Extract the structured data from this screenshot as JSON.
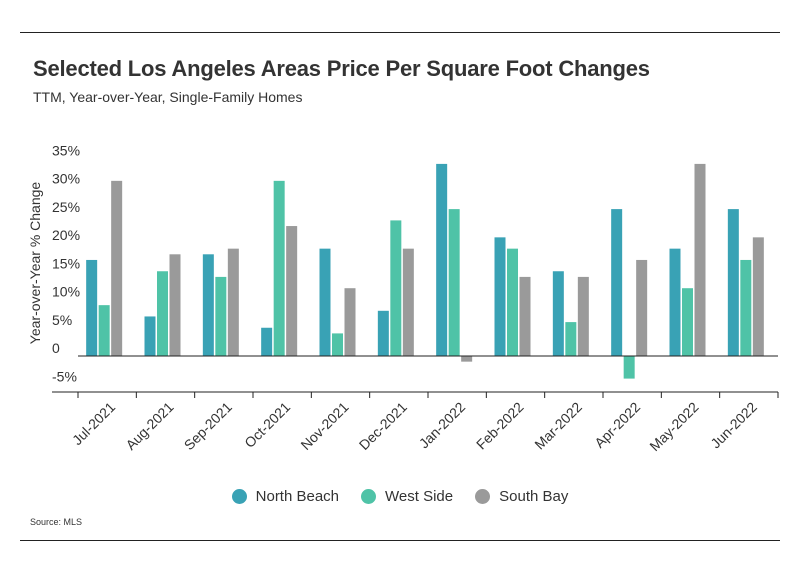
{
  "header": {
    "title": "Selected Los Angeles Areas Price Per Square Foot Changes",
    "subtitle": "TTM, Year-over-Year, Single-Family Homes"
  },
  "footer": {
    "source": "Source:  MLS"
  },
  "chart_data": {
    "type": "bar",
    "title": "Selected Los Angeles Areas Price Per Square Foot Changes",
    "subtitle": "TTM, Year-over-Year, Single-Family Homes",
    "xlabel": "",
    "ylabel": "Year-over-Year % Change",
    "ylim": [
      -5,
      35
    ],
    "yticks": [
      35,
      30,
      25,
      20,
      15,
      10,
      5,
      0,
      -5
    ],
    "ytick_labels": [
      "35%",
      "30%",
      "25%",
      "20%",
      "15%",
      "10%",
      "5%",
      "0",
      "-5%"
    ],
    "grid": false,
    "legend_position": "bottom",
    "categories": [
      "Jul-2021",
      "Aug-2021",
      "Sep-2021",
      "Oct-2021",
      "Nov-2021",
      "Dec-2021",
      "Jan-2022",
      "Feb-2022",
      "Mar-2022",
      "Apr-2022",
      "May-2022",
      "Jun-2022"
    ],
    "series": [
      {
        "name": "North Beach",
        "color": "#39a2b5",
        "values": [
          17,
          7,
          18,
          5,
          19,
          8,
          34,
          21,
          15,
          26,
          19,
          26
        ]
      },
      {
        "name": "West Side",
        "color": "#4fc3a7",
        "values": [
          9,
          15,
          14,
          31,
          4,
          24,
          26,
          19,
          6,
          -4,
          12,
          17
        ]
      },
      {
        "name": "South Bay",
        "color": "#9a9a9a",
        "values": [
          31,
          18,
          19,
          23,
          12,
          19,
          -1,
          14,
          14,
          17,
          34,
          21
        ]
      }
    ],
    "source": "Source:  MLS"
  }
}
